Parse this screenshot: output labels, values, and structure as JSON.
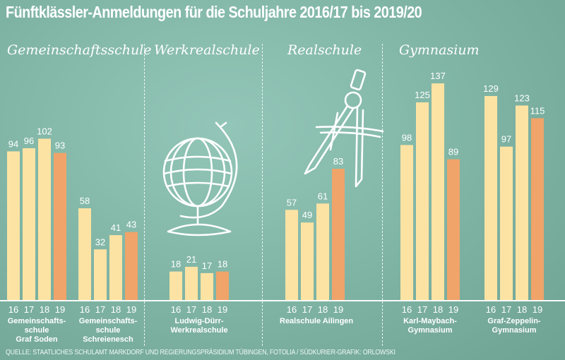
{
  "title": "Fünftklässler-Anmeldungen für die Schuljahre 2016/17 bis 2019/20",
  "source": "QUELLE: STAATLICHES SCHULAMT MARKDORF UND REGIERUNGSPRÄSIDIUM TÜBINGEN, FOTOLIA / SÜDKURIER-GRAFIK: ORLOWSKI",
  "categories": [
    "Gemeinschaftsschule",
    "Werkrealschule",
    "Realschule",
    "Gymnasium"
  ],
  "colors": {
    "past": "#fde3a3",
    "current": "#f0a469",
    "chalk": "#ffffff"
  },
  "illustrations": [
    "globe-drawing",
    "compass-drawing"
  ],
  "chart_data": {
    "type": "bar",
    "x": [
      "16",
      "17",
      "18",
      "19"
    ],
    "schools": [
      {
        "category": "Gemeinschaftsschule",
        "name_lines": [
          "Gemeinschafts-",
          "schule",
          "Graf Soden"
        ],
        "values": [
          94,
          96,
          102,
          93
        ]
      },
      {
        "category": "Gemeinschaftsschule",
        "name_lines": [
          "Gemeinschafts-",
          "schule",
          "Schreienesch"
        ],
        "values": [
          58,
          32,
          41,
          43
        ]
      },
      {
        "category": "Werkrealschule",
        "name_lines": [
          "Ludwig-Dürr-",
          "Werkrealschule"
        ],
        "values": [
          18,
          21,
          17,
          18
        ]
      },
      {
        "category": "Realschule",
        "name_lines": [
          "Realschule Ailingen"
        ],
        "values": [
          57,
          49,
          61,
          83
        ]
      },
      {
        "category": "Gymnasium",
        "name_lines": [
          "Karl-Maybach-",
          "Gymnasium"
        ],
        "values": [
          98,
          125,
          137,
          89
        ]
      },
      {
        "category": "Gymnasium",
        "name_lines": [
          "Graf-Zeppelin-",
          "Gymnasium"
        ],
        "values": [
          129,
          97,
          123,
          115
        ]
      }
    ]
  }
}
